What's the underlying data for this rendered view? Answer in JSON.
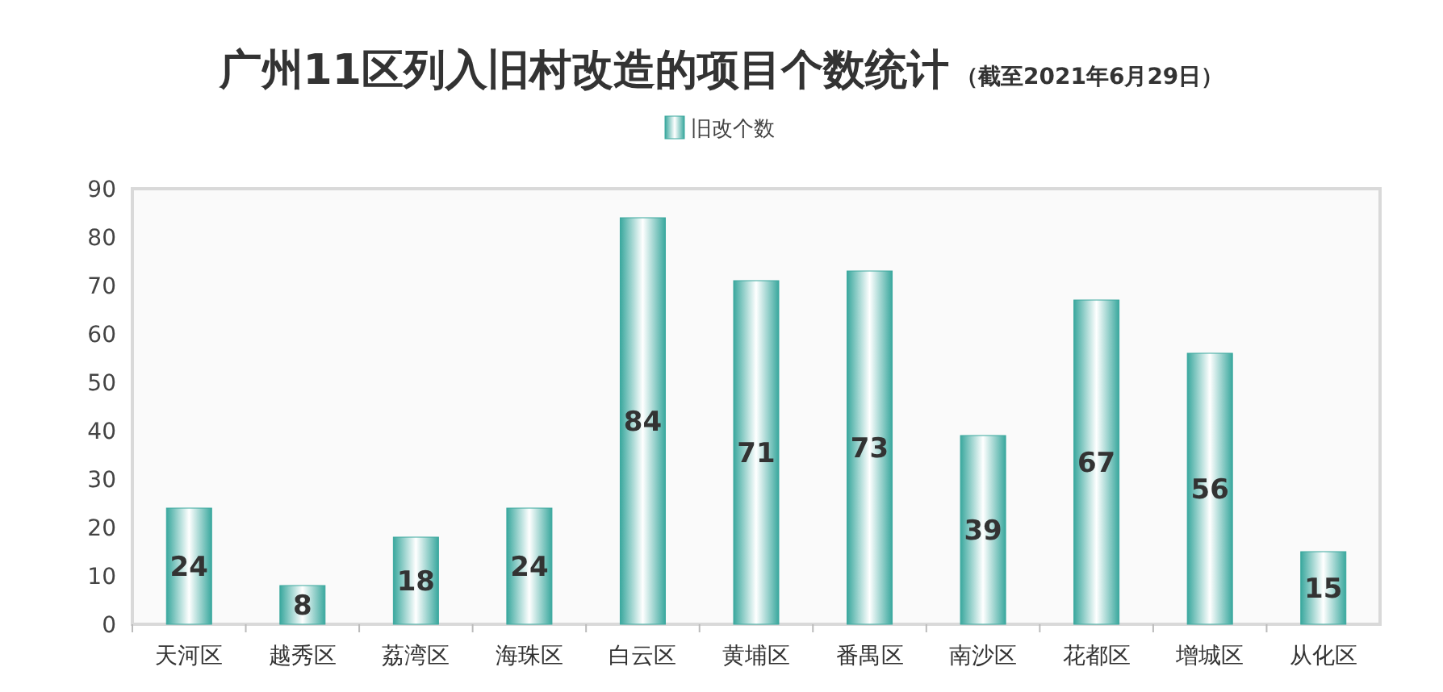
{
  "chart_data": {
    "type": "bar",
    "title": "广州11区列入旧村改造的项目个数统计",
    "subtitle": "（截至2021年6月29日）",
    "categories": [
      "天河区",
      "越秀区",
      "荔湾区",
      "海珠区",
      "白云区",
      "黄埔区",
      "番禺区",
      "南沙区",
      "花都区",
      "增城区",
      "从化区"
    ],
    "series": [
      {
        "name": "旧改个数",
        "color": "#3aa89e",
        "values": [
          24,
          8,
          18,
          24,
          84,
          71,
          73,
          39,
          67,
          56,
          15
        ]
      }
    ],
    "ylim": [
      0,
      90
    ],
    "yticks": [
      0,
      10,
      20,
      30,
      40,
      50,
      60,
      70,
      80,
      90
    ],
    "data_labels": true,
    "legend": "top"
  }
}
